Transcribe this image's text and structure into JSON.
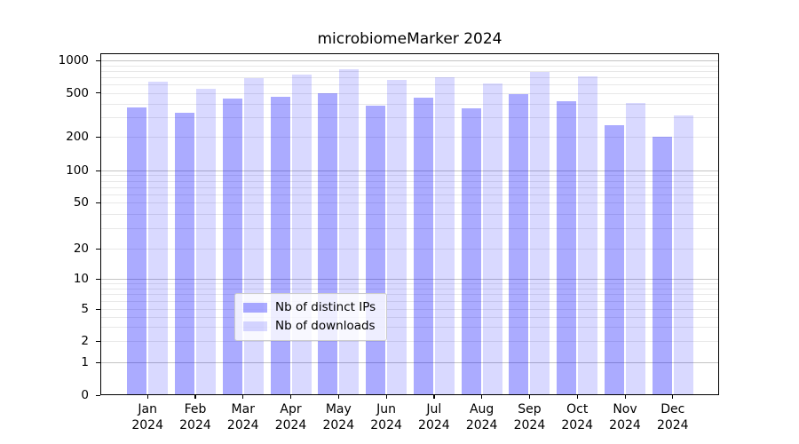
{
  "chart_data": {
    "type": "bar",
    "title": "microbiomeMarker 2024",
    "x_months": [
      "Jan",
      "Feb",
      "Mar",
      "Apr",
      "May",
      "Jun",
      "Jul",
      "Aug",
      "Sep",
      "Oct",
      "Nov",
      "Dec"
    ],
    "x_year": "2024",
    "series": [
      {
        "name": "Nb of distinct IPs",
        "color": "#0000ff",
        "alpha": 0.33,
        "values": [
          370,
          330,
          445,
          460,
          500,
          385,
          450,
          365,
          490,
          420,
          255,
          200
        ]
      },
      {
        "name": "Nb of downloads",
        "color": "#0000ff",
        "alpha": 0.15,
        "values": [
          630,
          545,
          680,
          740,
          835,
          655,
          695,
          610,
          775,
          710,
          405,
          310
        ]
      }
    ],
    "yscale": "symlog",
    "ylim": [
      0,
      1000
    ],
    "yticks": [
      0,
      1,
      2,
      5,
      10,
      20,
      50,
      100,
      200,
      500,
      1000
    ],
    "grid": true,
    "legend_position": "lower center",
    "gridline_minor_color": "#e8e8e8",
    "gridline_major_color": "#c4c4c4"
  }
}
